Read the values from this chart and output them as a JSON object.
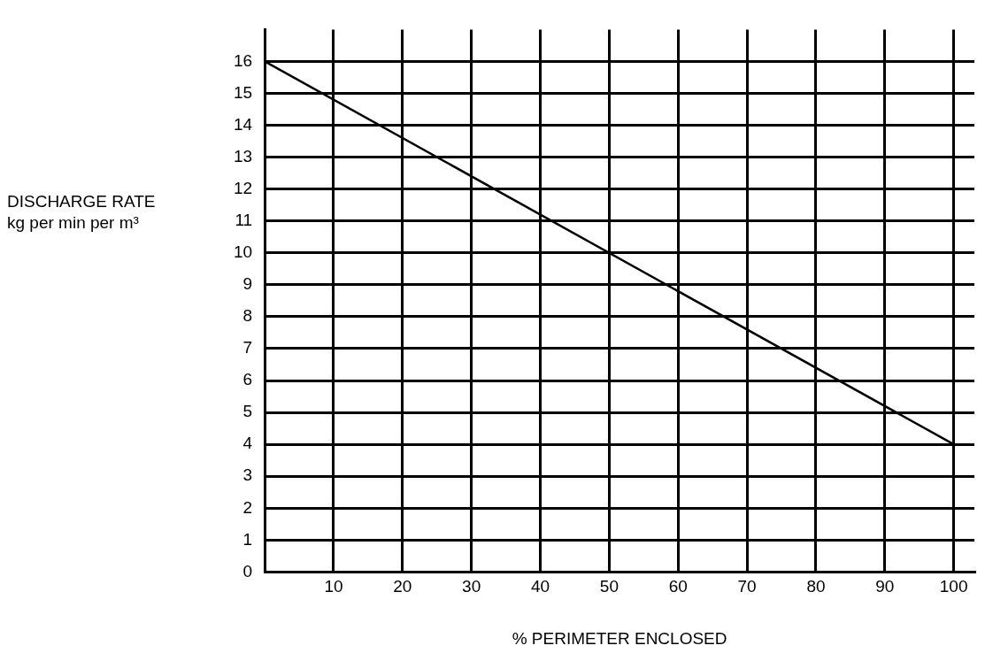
{
  "chart_data": {
    "type": "line",
    "xlabel": "% PERIMETER ENCLOSED",
    "ylabel": "DISCHARGE RATE\nkg per min per m³",
    "x": [
      0,
      100
    ],
    "series": [
      {
        "color": "#000000",
        "values": [
          16,
          4
        ]
      }
    ],
    "xlim": [
      0,
      103
    ],
    "ylim": [
      0,
      17
    ],
    "xticks": [
      {
        "value": 0,
        "label": null
      },
      10,
      20,
      30,
      40,
      50,
      60,
      70,
      80,
      90,
      100
    ],
    "yticks": [
      0,
      1,
      2,
      3,
      4,
      5,
      6,
      7,
      8,
      9,
      10,
      11,
      12,
      13,
      14,
      15,
      16
    ],
    "grid": true,
    "legend": false,
    "marker": "none",
    "line_style": "solid"
  }
}
